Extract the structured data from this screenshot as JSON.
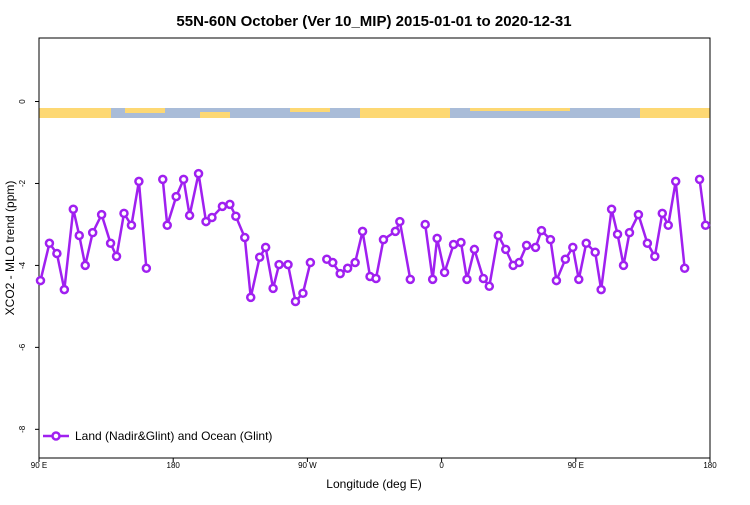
{
  "chart_data": {
    "type": "line",
    "title": "55N-60N October (Ver 10_MIP)   2015-01-01 to 2020-12-31",
    "xlabel": "Longitude (deg E)",
    "ylabel": "XCO2 - MLO trend (ppm)",
    "x": [
      91,
      97,
      102,
      107,
      113,
      117,
      121,
      126,
      132,
      138,
      142,
      147,
      152,
      157,
      162,
      167,
      173,
      176,
      182,
      187,
      191,
      197,
      202,
      206,
      213,
      218,
      222,
      228,
      232,
      238,
      242,
      247,
      251,
      257,
      262,
      267,
      272,
      277,
      283,
      287,
      292,
      297,
      302,
      307,
      312,
      316,
      321,
      329,
      332,
      339,
      344,
      349,
      354,
      357,
      362,
      368,
      373,
      377,
      382,
      388,
      392,
      398,
      403,
      408,
      412,
      417,
      423,
      427,
      433,
      437,
      443,
      448,
      452,
      457,
      463,
      467,
      474,
      478,
      482,
      486,
      492,
      498,
      503,
      508,
      512,
      517,
      523,
      528,
      533,
      537
    ],
    "series": [
      {
        "name": "Land (Nadir&Glint) and Ocean (Glint)",
        "color": "#a020f0",
        "values": [
          -4.37,
          -3.46,
          -3.71,
          -4.59,
          -2.63,
          -3.27,
          -4.0,
          -3.2,
          -2.76,
          -3.46,
          -3.78,
          -2.73,
          -3.02,
          -1.95,
          -4.07,
          null,
          -1.9,
          -3.02,
          -2.32,
          -1.9,
          -2.78,
          -1.76,
          -2.93,
          -2.83,
          -2.56,
          -2.51,
          -2.8,
          -3.32,
          -4.78,
          -3.8,
          -3.56,
          -4.56,
          -3.98,
          -3.98,
          -4.88,
          -4.68,
          -3.93,
          null,
          -3.85,
          -3.93,
          -4.2,
          -4.07,
          -3.93,
          -3.17,
          -4.27,
          -4.32,
          -3.37,
          -3.17,
          -2.93,
          -4.34,
          null,
          -3.0,
          -4.34,
          -3.34,
          -4.17,
          -3.49,
          -3.44,
          -4.34,
          -3.61,
          -4.32,
          -4.51,
          -3.27,
          -3.61,
          -4.0,
          -3.93,
          -3.51,
          -3.56,
          -3.15,
          -3.37,
          -4.37,
          -3.85,
          -3.56,
          -4.34,
          -3.46,
          -3.68,
          -4.59,
          -2.63,
          -3.24,
          -4.0,
          -3.2,
          -2.76,
          -3.46,
          -3.78,
          -2.73,
          -3.02,
          -1.95,
          -4.07,
          null,
          -1.9,
          -3.02
        ]
      }
    ],
    "xlim": [
      90,
      540
    ],
    "xticks": [
      {
        "value": 90,
        "label": "90 E"
      },
      {
        "value": 180,
        "label": "180"
      },
      {
        "value": 270,
        "label": "90 W"
      },
      {
        "value": 360,
        "label": "0"
      },
      {
        "value": 450,
        "label": "90 E"
      },
      {
        "value": 540,
        "label": "180"
      }
    ],
    "ylim": [
      -8.7,
      1.55
    ],
    "yticks": [
      0,
      -2,
      -4,
      -6,
      -8
    ],
    "legend": "lower left"
  }
}
